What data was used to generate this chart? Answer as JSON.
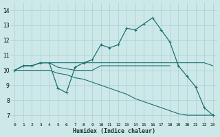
{
  "xlabel": "Humidex (Indice chaleur)",
  "background_color": "#cde8e8",
  "line_color": "#1a7070",
  "grid_color": "#aacfcf",
  "xlim": [
    -0.5,
    23.5
  ],
  "ylim": [
    6.5,
    14.5
  ],
  "xticks": [
    0,
    1,
    2,
    3,
    4,
    5,
    6,
    7,
    8,
    9,
    10,
    11,
    12,
    13,
    14,
    15,
    16,
    17,
    18,
    19,
    20,
    21,
    22,
    23
  ],
  "yticks": [
    7,
    8,
    9,
    10,
    11,
    12,
    13,
    14
  ],
  "series": [
    {
      "x": [
        0,
        1,
        2,
        3,
        4,
        5,
        6,
        7,
        8,
        9,
        10,
        11,
        12,
        13,
        14,
        15,
        16,
        17,
        18,
        19,
        20,
        21,
        22,
        23
      ],
      "y": [
        10.0,
        10.3,
        10.3,
        10.5,
        10.5,
        8.8,
        8.5,
        10.2,
        10.5,
        10.7,
        11.7,
        11.5,
        11.7,
        12.8,
        12.7,
        13.1,
        13.5,
        12.7,
        11.9,
        10.3,
        9.6,
        8.9,
        7.5,
        7.0
      ],
      "linestyle": "solid",
      "marker": true
    },
    {
      "x": [
        0,
        1,
        2,
        3,
        4,
        5,
        6,
        7,
        8,
        9,
        10,
        11,
        12,
        13,
        14,
        15,
        16,
        17,
        18
      ],
      "y": [
        10.0,
        10.3,
        10.3,
        10.5,
        10.5,
        10.2,
        10.1,
        10.0,
        10.0,
        10.0,
        10.3,
        10.3,
        10.3,
        10.3,
        10.3,
        10.3,
        10.3,
        10.3,
        10.3
      ],
      "linestyle": "solid",
      "marker": false
    },
    {
      "x": [
        0,
        1,
        2,
        3,
        4,
        5,
        6,
        7,
        8,
        9,
        10,
        11,
        12,
        13,
        14,
        15,
        16,
        17,
        18,
        19,
        20,
        21,
        22,
        23
      ],
      "y": [
        10.0,
        10.0,
        10.0,
        10.0,
        10.0,
        9.8,
        9.7,
        9.5,
        9.4,
        9.2,
        9.0,
        8.8,
        8.6,
        8.4,
        8.1,
        7.9,
        7.7,
        7.5,
        7.3,
        7.1,
        7.0,
        7.0,
        7.0,
        7.0
      ],
      "linestyle": "solid",
      "marker": false
    },
    {
      "x": [
        0,
        1,
        2,
        3,
        4,
        5,
        6,
        7,
        8,
        9,
        10,
        11,
        12,
        13,
        14,
        15,
        16,
        17,
        18,
        19,
        20,
        21,
        22,
        23
      ],
      "y": [
        10.0,
        10.3,
        10.3,
        10.5,
        10.5,
        10.5,
        10.5,
        10.5,
        10.5,
        10.5,
        10.5,
        10.5,
        10.5,
        10.5,
        10.5,
        10.5,
        10.5,
        10.5,
        10.5,
        10.5,
        10.5,
        10.5,
        10.5,
        10.3
      ],
      "linestyle": "solid",
      "marker": false
    }
  ]
}
